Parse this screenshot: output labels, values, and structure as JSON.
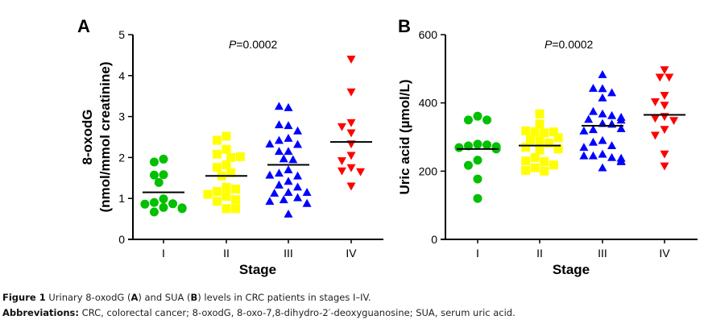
{
  "chart_data": [
    {
      "type": "scatter",
      "panel_label": "A",
      "title": "",
      "annotation": {
        "prefix_italic": "P",
        "text": "=0.0002"
      },
      "xlabel": "Stage",
      "ylabel_line1": "8-oxodG",
      "ylabel_line2": "(nmol/mmol creatinine)",
      "categories": [
        "I",
        "II",
        "III",
        "IV"
      ],
      "ylim": [
        0,
        5
      ],
      "yticks": [
        0,
        1,
        2,
        3,
        4,
        5
      ],
      "grid": false,
      "legend": "none",
      "series": [
        {
          "name": "I",
          "marker": "circle",
          "color": "#00c000",
          "values": [
            1.96,
            1.89,
            1.58,
            1.57,
            1.39,
            0.99,
            0.9,
            0.87,
            0.86,
            0.78,
            0.77,
            0.75,
            0.67
          ],
          "mean": 1.15
        },
        {
          "name": "II",
          "marker": "square",
          "color": "#ffff00",
          "values": [
            2.52,
            2.42,
            2.2,
            2.08,
            2.0,
            2.02,
            1.82,
            1.76,
            1.63,
            1.55,
            1.27,
            1.17,
            1.23,
            1.1,
            1.05,
            0.97,
            0.93,
            0.75,
            0.75
          ],
          "mean": 1.55
        },
        {
          "name": "III",
          "marker": "triangle-up",
          "color": "#0000ff",
          "values": [
            3.22,
            3.25,
            2.78,
            2.8,
            2.65,
            2.47,
            2.42,
            2.32,
            2.33,
            2.15,
            2.15,
            1.97,
            1.95,
            1.7,
            1.62,
            1.55,
            1.57,
            1.42,
            1.33,
            1.28,
            1.15,
            1.13,
            1.15,
            1.02,
            0.97,
            0.93,
            0.88,
            0.62
          ],
          "mean": 1.82
        },
        {
          "name": "IV",
          "marker": "triangle-down",
          "color": "#ff0000",
          "values": [
            4.4,
            3.6,
            2.85,
            2.75,
            2.6,
            2.33,
            2.05,
            1.92,
            1.75,
            1.67,
            1.65,
            1.3
          ],
          "mean": 2.38
        }
      ]
    },
    {
      "type": "scatter",
      "panel_label": "B",
      "title": "",
      "annotation": {
        "prefix_italic": "P",
        "text": "=0.0002"
      },
      "xlabel": "Stage",
      "ylabel_line1": "Uric acid (µmol/L)",
      "ylabel_line2": "",
      "categories": [
        "I",
        "II",
        "III",
        "IV"
      ],
      "ylim": [
        0,
        600
      ],
      "yticks": [
        0,
        200,
        400,
        600
      ],
      "grid": false,
      "legend": "none",
      "series": [
        {
          "name": "I",
          "marker": "circle",
          "color": "#00c000",
          "values": [
            361,
            350,
            350,
            279,
            274,
            277,
            269,
            265,
            272,
            232,
            217,
            177,
            120
          ],
          "mean": 265
        },
        {
          "name": "II",
          "marker": "square",
          "color": "#ffff00",
          "values": [
            368,
            338,
            315,
            312,
            318,
            315,
            292,
            298,
            288,
            282,
            270,
            262,
            265,
            240,
            228,
            230,
            218,
            210,
            200,
            202
          ],
          "mean": 275
        },
        {
          "name": "III",
          "marker": "triangle-up",
          "color": "#0000ff",
          "values": [
            483,
            442,
            443,
            430,
            415,
            368,
            375,
            363,
            352,
            358,
            350,
            340,
            338,
            322,
            318,
            325,
            290,
            285,
            275,
            270,
            250,
            245,
            240,
            245,
            238,
            230,
            228,
            210
          ],
          "mean": 333
        },
        {
          "name": "IV",
          "marker": "triangle-down",
          "color": "#ff0000",
          "values": [
            497,
            475,
            475,
            422,
            393,
            403,
            360,
            355,
            348,
            322,
            305,
            250,
            215
          ],
          "mean": 365
        }
      ]
    }
  ],
  "caption": {
    "figure_label": "Figure 1",
    "text_1": " Urinary 8-oxodG (",
    "bold_a": "A",
    "text_2": ") and SUA (",
    "bold_b": "B",
    "text_3": ") levels in CRC patients in stages I–IV.",
    "abbrev_label": "Abbreviations:",
    "abbrev_text": " CRC, colorectal cancer; 8-oxodG, 8-oxo-7,8-dihydro-2′-deoxyguanosine; SUA, serum uric acid."
  }
}
